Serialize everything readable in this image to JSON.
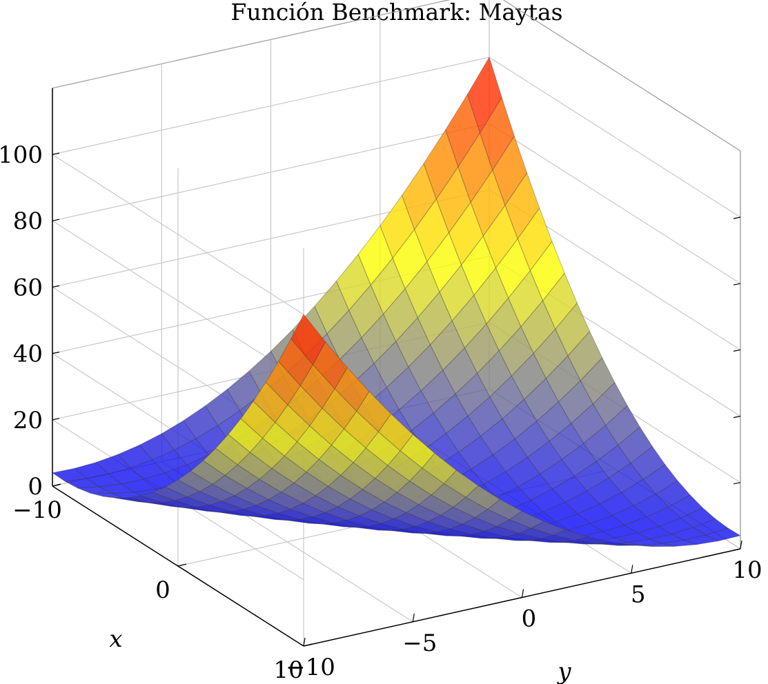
{
  "chart_data": {
    "type": "surface",
    "title": "Función Benchmark: Maytas",
    "xlabel": "x",
    "ylabel": "y",
    "zlabel": "",
    "function": "0.26*(x^2+y^2) - 0.48*x*y",
    "x_range": [
      -10,
      10
    ],
    "y_range": [
      -10,
      10
    ],
    "z_range": [
      0,
      120
    ],
    "samples": 21,
    "x_ticks": [
      -10,
      0,
      10
    ],
    "y_ticks": [
      -10,
      -5,
      0,
      5,
      10
    ],
    "z_ticks": [
      0,
      20,
      40,
      60,
      80,
      100
    ],
    "x_tick_labels": [
      "−10",
      "0",
      "10"
    ],
    "y_tick_labels": [
      "−10",
      "−5",
      "0",
      "5",
      "10"
    ],
    "z_tick_labels": [
      "0",
      "20",
      "40",
      "60",
      "80",
      "100"
    ],
    "grid": true,
    "colormap": [
      "#0000ff",
      "#ffff00",
      "#ff0000"
    ]
  }
}
